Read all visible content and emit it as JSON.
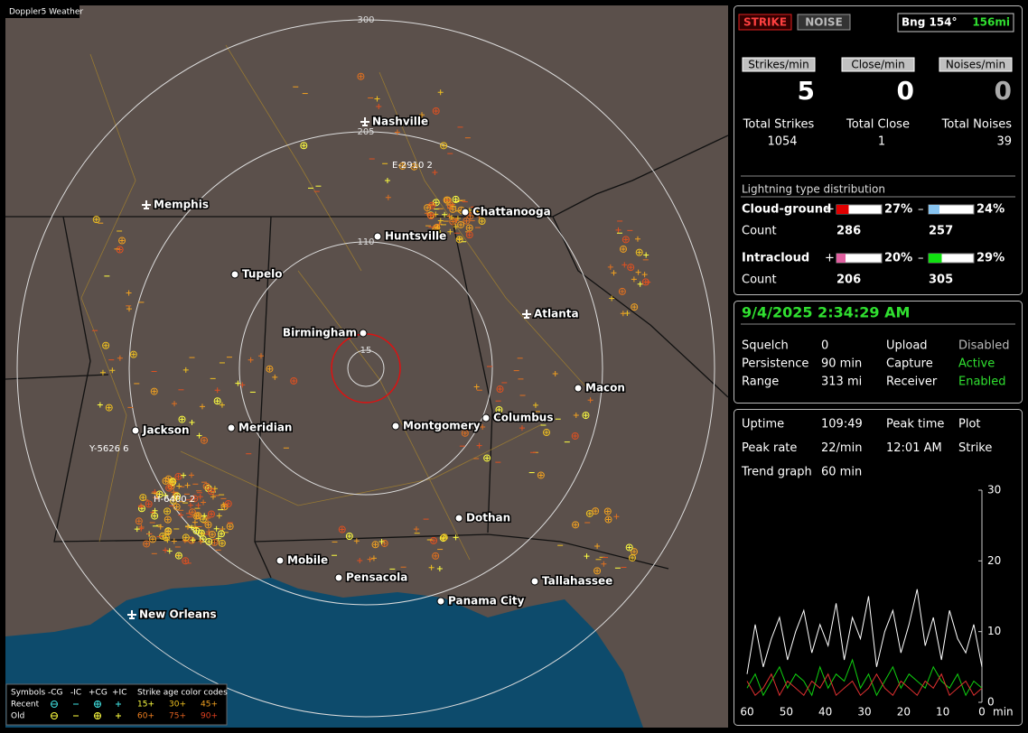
{
  "app_title": "Doppler5 Weather",
  "map": {
    "range_rings": [
      "15",
      "110",
      "205",
      "300"
    ],
    "cities": [
      "Nashville",
      "Memphis",
      "Chattanooga",
      "Huntsville",
      "Tupelo",
      "Atlanta",
      "Birmingham",
      "Macon",
      "Jackson",
      "Meridian",
      "Montgomery",
      "Columbus",
      "Dothan",
      "Mobile",
      "Pensacola",
      "Tallahassee",
      "Panama City",
      "New Orleans"
    ],
    "annotations": [
      "E-2910  2",
      "Y-5626  6",
      "H-6400  2"
    ]
  },
  "legend": {
    "symbols_label": "Symbols",
    "columns": [
      "-CG",
      "-IC",
      "+CG",
      "+IC"
    ],
    "age_title": "Strike age color codes",
    "rows": [
      {
        "label": "Recent",
        "ages": [
          "15+",
          "30+",
          "45+"
        ]
      },
      {
        "label": "Old",
        "ages": [
          "60+",
          "75+",
          "90+"
        ]
      }
    ]
  },
  "status": {
    "buttons": [
      "STRIKE",
      "NOISE"
    ],
    "bearing": "Bng 154°",
    "distance": "156mi"
  },
  "rates": [
    {
      "label": "Strikes/min",
      "value": "5"
    },
    {
      "label": "Close/min",
      "value": "0"
    },
    {
      "label": "Noises/min",
      "value": "0"
    }
  ],
  "totals": [
    {
      "label": "Total Strikes",
      "value": "1054"
    },
    {
      "label": "Total Close",
      "value": "1"
    },
    {
      "label": "Total Noises",
      "value": "39"
    }
  ],
  "distribution": {
    "title": "Lightning type distribution",
    "count_label": "Count",
    "plus_sign": "+",
    "minus_sign": "–",
    "types": [
      {
        "name": "Cloud-ground",
        "plus": {
          "value": 27,
          "label": "27%"
        },
        "minus": {
          "value": 24,
          "label": "24%"
        },
        "counts": [
          "286",
          "257"
        ],
        "plus_color": "#e00000",
        "minus_color": "#88c4f0"
      },
      {
        "name": "Intracloud",
        "plus": {
          "value": 20,
          "label": "20%"
        },
        "minus": {
          "value": 29,
          "label": "29%"
        },
        "counts": [
          "206",
          "305"
        ],
        "plus_color": "#e060a0",
        "minus_color": "#10e010"
      }
    ]
  },
  "datetime": "9/4/2025 2:34:29 AM",
  "settings": [
    [
      "Squelch",
      "0",
      "Upload",
      "Disabled"
    ],
    [
      "Persistence",
      "90 min",
      "Capture",
      "Active"
    ],
    [
      "Range",
      "313 mi",
      "Receiver",
      "Enabled"
    ]
  ],
  "stats": [
    [
      "Uptime",
      "109:49",
      "Peak time",
      "Plot"
    ],
    [
      "Peak rate",
      "22/min",
      "12:01 AM",
      "Strike"
    ],
    [
      "Trend graph",
      "60 min"
    ]
  ],
  "trend": {
    "xlim": [
      60,
      0
    ],
    "xticks": [
      60,
      50,
      40,
      30,
      20,
      10,
      0
    ],
    "x_unit": "min",
    "ylim": [
      0,
      30
    ],
    "yticks": [
      0,
      10,
      20,
      30
    ],
    "series": [
      {
        "color": "#ffffff",
        "values": [
          4,
          11,
          5,
          9,
          12,
          6,
          10,
          13,
          7,
          11,
          8,
          14,
          6,
          12,
          9,
          15,
          5,
          10,
          13,
          7,
          11,
          16,
          8,
          12,
          6,
          13,
          9,
          7,
          11,
          5
        ]
      },
      {
        "color": "#10d010",
        "values": [
          2,
          4,
          1,
          3,
          5,
          2,
          4,
          3,
          1,
          5,
          2,
          4,
          3,
          6,
          2,
          4,
          1,
          3,
          5,
          2,
          4,
          3,
          2,
          5,
          3,
          2,
          4,
          1,
          3,
          2
        ]
      },
      {
        "color": "#e03030",
        "values": [
          3,
          1,
          2,
          4,
          1,
          3,
          2,
          1,
          3,
          2,
          4,
          1,
          2,
          3,
          1,
          2,
          4,
          2,
          1,
          3,
          2,
          1,
          3,
          2,
          4,
          1,
          2,
          3,
          1,
          2
        ]
      }
    ]
  }
}
